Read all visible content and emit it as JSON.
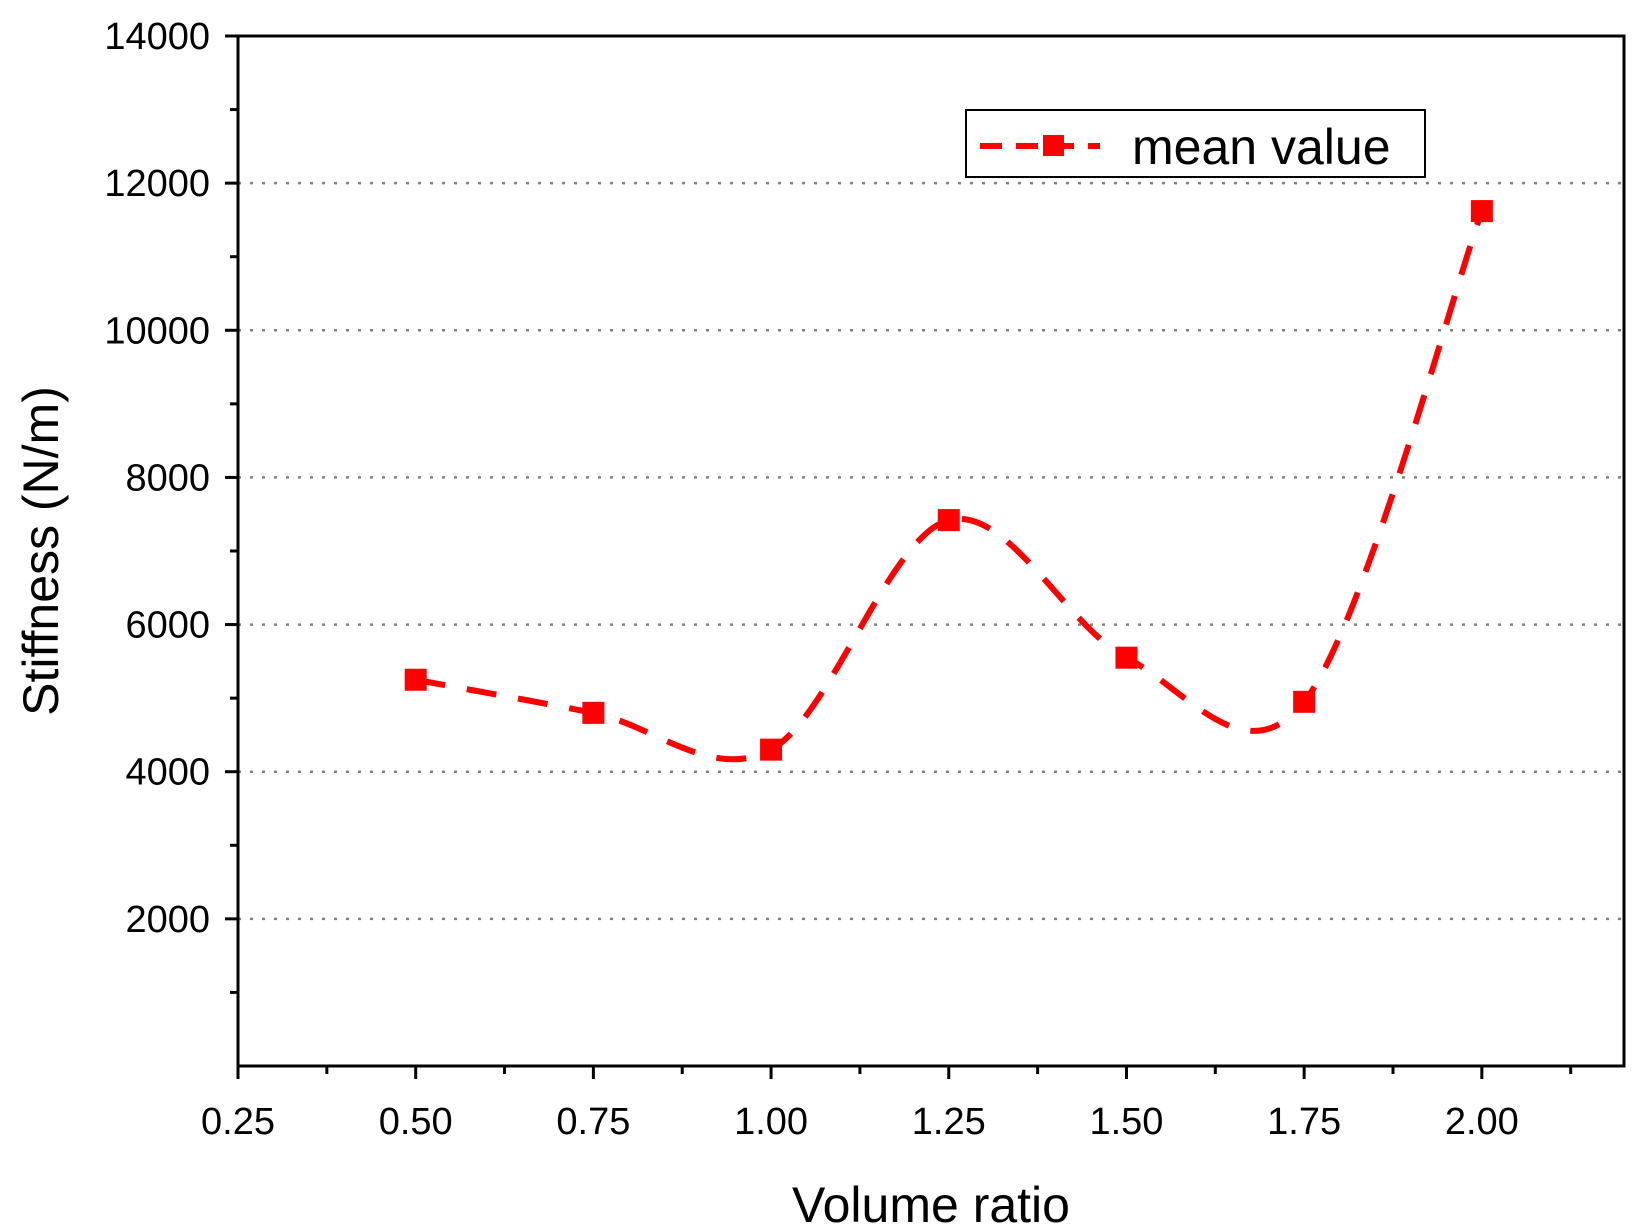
{
  "chart_data": {
    "type": "line",
    "xlabel": "Volume ratio",
    "ylabel": "Stiffness (N/m)",
    "xlim": [
      0.25,
      2.2
    ],
    "ylim": [
      0,
      14000
    ],
    "x_ticks": [
      "0.25",
      "0.50",
      "0.75",
      "1.00",
      "1.25",
      "1.50",
      "1.75",
      "2.00"
    ],
    "y_ticks": [
      "2000",
      "4000",
      "6000",
      "8000",
      "10000",
      "12000",
      "14000"
    ],
    "x_tick_values": [
      0.25,
      0.5,
      0.75,
      1.0,
      1.25,
      1.5,
      1.75,
      2.0
    ],
    "y_tick_values": [
      2000,
      4000,
      6000,
      8000,
      10000,
      12000,
      14000
    ],
    "grid": "horizontal dotted",
    "legend_position": "top-right",
    "series": [
      {
        "name": "mean value",
        "color": "#ff0000",
        "line_style": "dashed smooth",
        "marker": "square",
        "x": [
          0.5,
          0.75,
          1.0,
          1.25,
          1.5,
          1.75,
          2.0
        ],
        "values": [
          5250,
          4800,
          4300,
          7420,
          5550,
          4950,
          11620
        ]
      }
    ]
  }
}
